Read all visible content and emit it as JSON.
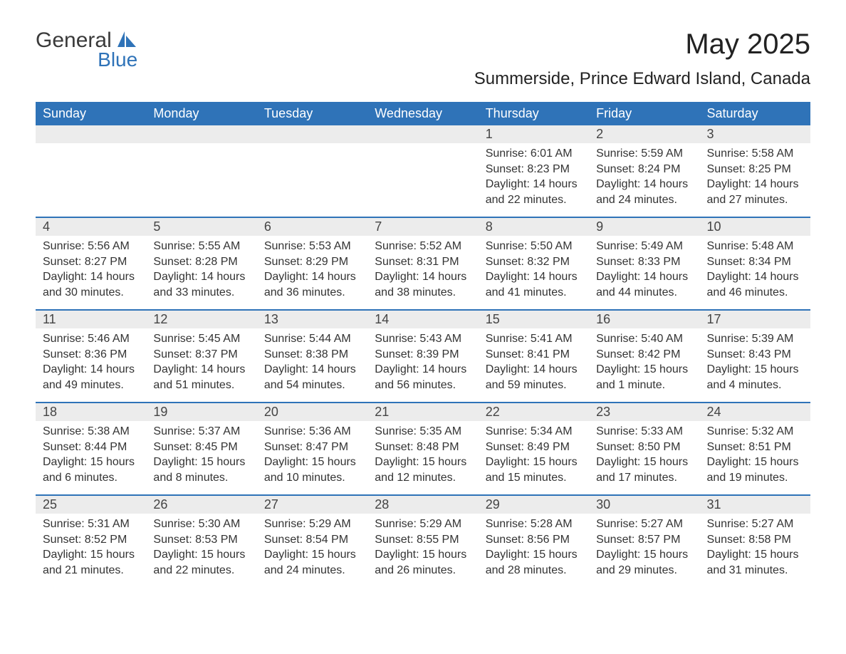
{
  "logo": {
    "line1": "General",
    "line2": "Blue"
  },
  "title": "May 2025",
  "location": "Summerside, Prince Edward Island, Canada",
  "colors": {
    "header_bg": "#2f73b8",
    "header_text": "#ffffff",
    "daynum_bg": "#ececec",
    "border": "#2f73b8",
    "text": "#333333"
  },
  "weekdays": [
    "Sunday",
    "Monday",
    "Tuesday",
    "Wednesday",
    "Thursday",
    "Friday",
    "Saturday"
  ],
  "weeks": [
    [
      null,
      null,
      null,
      null,
      {
        "n": "1",
        "sunrise": "6:01 AM",
        "sunset": "8:23 PM",
        "daylight": "14 hours and 22 minutes."
      },
      {
        "n": "2",
        "sunrise": "5:59 AM",
        "sunset": "8:24 PM",
        "daylight": "14 hours and 24 minutes."
      },
      {
        "n": "3",
        "sunrise": "5:58 AM",
        "sunset": "8:25 PM",
        "daylight": "14 hours and 27 minutes."
      }
    ],
    [
      {
        "n": "4",
        "sunrise": "5:56 AM",
        "sunset": "8:27 PM",
        "daylight": "14 hours and 30 minutes."
      },
      {
        "n": "5",
        "sunrise": "5:55 AM",
        "sunset": "8:28 PM",
        "daylight": "14 hours and 33 minutes."
      },
      {
        "n": "6",
        "sunrise": "5:53 AM",
        "sunset": "8:29 PM",
        "daylight": "14 hours and 36 minutes."
      },
      {
        "n": "7",
        "sunrise": "5:52 AM",
        "sunset": "8:31 PM",
        "daylight": "14 hours and 38 minutes."
      },
      {
        "n": "8",
        "sunrise": "5:50 AM",
        "sunset": "8:32 PM",
        "daylight": "14 hours and 41 minutes."
      },
      {
        "n": "9",
        "sunrise": "5:49 AM",
        "sunset": "8:33 PM",
        "daylight": "14 hours and 44 minutes."
      },
      {
        "n": "10",
        "sunrise": "5:48 AM",
        "sunset": "8:34 PM",
        "daylight": "14 hours and 46 minutes."
      }
    ],
    [
      {
        "n": "11",
        "sunrise": "5:46 AM",
        "sunset": "8:36 PM",
        "daylight": "14 hours and 49 minutes."
      },
      {
        "n": "12",
        "sunrise": "5:45 AM",
        "sunset": "8:37 PM",
        "daylight": "14 hours and 51 minutes."
      },
      {
        "n": "13",
        "sunrise": "5:44 AM",
        "sunset": "8:38 PM",
        "daylight": "14 hours and 54 minutes."
      },
      {
        "n": "14",
        "sunrise": "5:43 AM",
        "sunset": "8:39 PM",
        "daylight": "14 hours and 56 minutes."
      },
      {
        "n": "15",
        "sunrise": "5:41 AM",
        "sunset": "8:41 PM",
        "daylight": "14 hours and 59 minutes."
      },
      {
        "n": "16",
        "sunrise": "5:40 AM",
        "sunset": "8:42 PM",
        "daylight": "15 hours and 1 minute."
      },
      {
        "n": "17",
        "sunrise": "5:39 AM",
        "sunset": "8:43 PM",
        "daylight": "15 hours and 4 minutes."
      }
    ],
    [
      {
        "n": "18",
        "sunrise": "5:38 AM",
        "sunset": "8:44 PM",
        "daylight": "15 hours and 6 minutes."
      },
      {
        "n": "19",
        "sunrise": "5:37 AM",
        "sunset": "8:45 PM",
        "daylight": "15 hours and 8 minutes."
      },
      {
        "n": "20",
        "sunrise": "5:36 AM",
        "sunset": "8:47 PM",
        "daylight": "15 hours and 10 minutes."
      },
      {
        "n": "21",
        "sunrise": "5:35 AM",
        "sunset": "8:48 PM",
        "daylight": "15 hours and 12 minutes."
      },
      {
        "n": "22",
        "sunrise": "5:34 AM",
        "sunset": "8:49 PM",
        "daylight": "15 hours and 15 minutes."
      },
      {
        "n": "23",
        "sunrise": "5:33 AM",
        "sunset": "8:50 PM",
        "daylight": "15 hours and 17 minutes."
      },
      {
        "n": "24",
        "sunrise": "5:32 AM",
        "sunset": "8:51 PM",
        "daylight": "15 hours and 19 minutes."
      }
    ],
    [
      {
        "n": "25",
        "sunrise": "5:31 AM",
        "sunset": "8:52 PM",
        "daylight": "15 hours and 21 minutes."
      },
      {
        "n": "26",
        "sunrise": "5:30 AM",
        "sunset": "8:53 PM",
        "daylight": "15 hours and 22 minutes."
      },
      {
        "n": "27",
        "sunrise": "5:29 AM",
        "sunset": "8:54 PM",
        "daylight": "15 hours and 24 minutes."
      },
      {
        "n": "28",
        "sunrise": "5:29 AM",
        "sunset": "8:55 PM",
        "daylight": "15 hours and 26 minutes."
      },
      {
        "n": "29",
        "sunrise": "5:28 AM",
        "sunset": "8:56 PM",
        "daylight": "15 hours and 28 minutes."
      },
      {
        "n": "30",
        "sunrise": "5:27 AM",
        "sunset": "8:57 PM",
        "daylight": "15 hours and 29 minutes."
      },
      {
        "n": "31",
        "sunrise": "5:27 AM",
        "sunset": "8:58 PM",
        "daylight": "15 hours and 31 minutes."
      }
    ]
  ],
  "labels": {
    "sunrise": "Sunrise:",
    "sunset": "Sunset:",
    "daylight": "Daylight:"
  }
}
